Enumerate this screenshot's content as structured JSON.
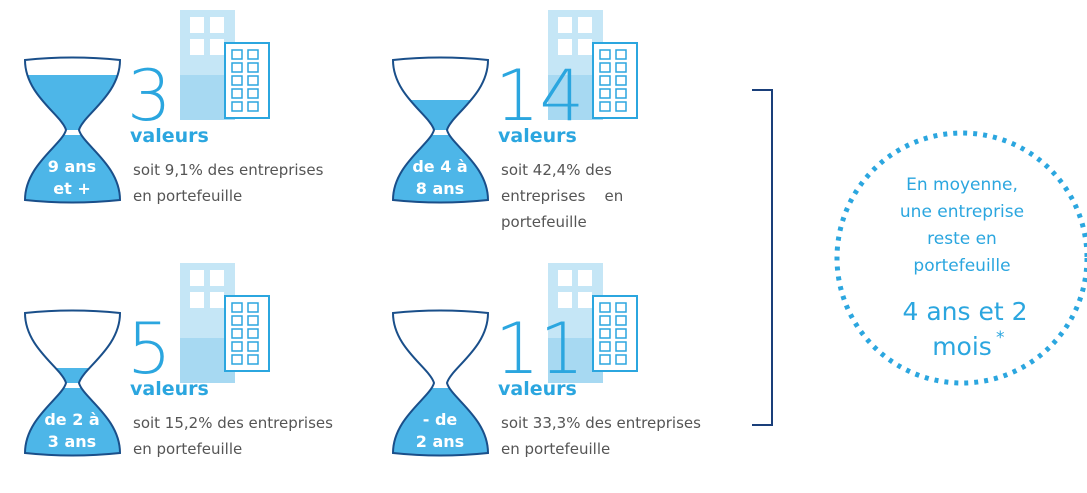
{
  "items": [
    {
      "hourglass": [
        "9 ans",
        "et +"
      ],
      "count": "3",
      "unit": "valeurs",
      "description": [
        "soit 9,1% des entreprises",
        "en portefeuille"
      ]
    },
    {
      "hourglass": [
        "de 4 à",
        "8 ans"
      ],
      "count": "14",
      "unit": "valeurs",
      "description": [
        "soit 42,4% des",
        "entreprises    en",
        "portefeuille"
      ]
    },
    {
      "hourglass": [
        "de 2 à",
        "3 ans"
      ],
      "count": "5",
      "unit": "valeurs",
      "description": [
        "soit 15,2% des entreprises",
        "en portefeuille"
      ]
    },
    {
      "hourglass": [
        "- de",
        "2 ans"
      ],
      "count": "11",
      "unit": "valeurs",
      "description": [
        "soit 33,3% des entreprises",
        "en portefeuille"
      ]
    }
  ],
  "summary": {
    "lines": [
      "En moyenne,",
      "une entreprise",
      "reste en",
      "portefeuille"
    ],
    "duration": [
      "4 ans et 2",
      "mois"
    ],
    "footnote": "*"
  }
}
